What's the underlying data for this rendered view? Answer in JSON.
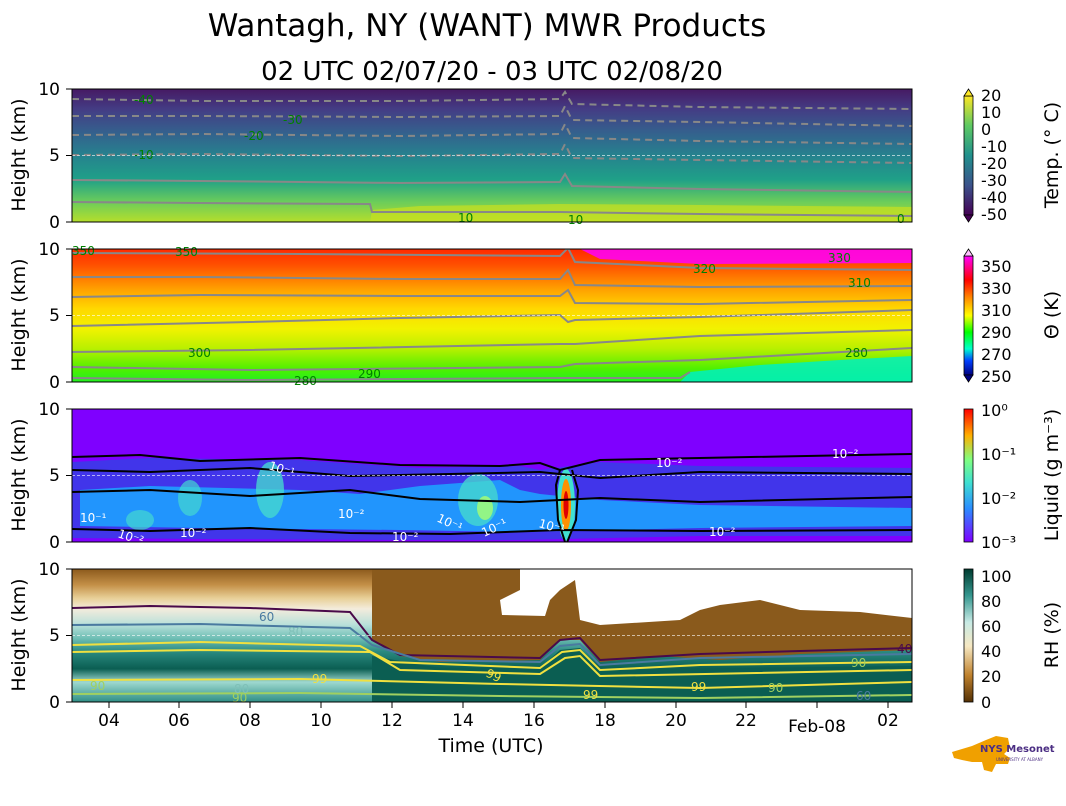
{
  "figure": {
    "title": "Wantagh, NY (WANT) MWR Products",
    "subtitle": "02 UTC 02/07/20 - 03 UTC 02/08/20",
    "xlabel": "Time (UTC)",
    "x_ticks": [
      "04",
      "06",
      "08",
      "10",
      "12",
      "14",
      "16",
      "18",
      "20",
      "22",
      "02"
    ],
    "date_tick": "Feb-08",
    "logo_text": "NYS Mesonet",
    "logo_subtext": "UNIVERSITY AT ALBANY"
  },
  "chart_data": [
    {
      "type": "heatmap",
      "ylabel": "Height (km)",
      "ylim": [
        0,
        10
      ],
      "y_ticks": [
        "0",
        "5",
        "10"
      ],
      "colorbar_label": "Temp. (° C)",
      "colorbar_ticks": [
        "20",
        "10",
        "0",
        "-10",
        "-20",
        "-30",
        "-40",
        "-50"
      ],
      "colorbar_range": [
        -50,
        20
      ],
      "colormap": [
        "#440154",
        "#3b528b",
        "#21908d",
        "#5dc963",
        "#fde725"
      ],
      "contour_labels": [
        "-40",
        "-30",
        "-20",
        "-10",
        "10",
        "10",
        "0"
      ],
      "contours_dashed_below_zero": true
    },
    {
      "type": "heatmap",
      "ylabel": "Height (km)",
      "ylim": [
        0,
        10
      ],
      "y_ticks": [
        "0",
        "5",
        "10"
      ],
      "colorbar_label": "Θ (K)",
      "colorbar_ticks": [
        "350",
        "330",
        "310",
        "290",
        "270",
        "250"
      ],
      "colorbar_range": [
        250,
        360
      ],
      "colormap": [
        "#000080",
        "#00ffcc",
        "#00ff00",
        "#ffff00",
        "#ff8000",
        "#ff0000",
        "#ff00ff"
      ],
      "contour_labels": [
        "350",
        "350",
        "330",
        "320",
        "310",
        "300",
        "290",
        "280",
        "280"
      ]
    },
    {
      "type": "heatmap",
      "ylabel": "Height (km)",
      "ylim": [
        0,
        10
      ],
      "y_ticks": [
        "0",
        "5",
        "10"
      ],
      "colorbar_label": "Liquid (g m⁻³)",
      "colorbar_ticks": [
        "10⁰",
        "10⁻¹",
        "10⁻²",
        "10⁻³"
      ],
      "colorbar_scale": "log",
      "colorbar_range": [
        0.001,
        1
      ],
      "colormap": [
        "#7f00ff",
        "#2b8cff",
        "#3fe0d0",
        "#80ff80",
        "#ffb000",
        "#ff0000"
      ],
      "contour_labels": [
        "10⁻¹",
        "10⁻²",
        "10⁻²",
        "10⁻²",
        "10⁻¹",
        "10⁻²",
        "10⁻²",
        "10⁻¹",
        "10⁻¹",
        "10⁻¹",
        "10⁻²",
        "10⁻²"
      ]
    },
    {
      "type": "heatmap",
      "ylabel": "Height (km)",
      "ylim": [
        0,
        10
      ],
      "y_ticks": [
        "0",
        "5",
        "10"
      ],
      "colorbar_label": "RH (%)",
      "colorbar_ticks": [
        "100",
        "80",
        "60",
        "40",
        "20",
        "0"
      ],
      "colorbar_range": [
        0,
        100
      ],
      "colormap": [
        "#543005",
        "#bf812d",
        "#f6e8c3",
        "#c7eae5",
        "#35978f",
        "#003c30"
      ],
      "contour_labels": [
        "60",
        "80",
        "99",
        "99",
        "90",
        "99",
        "99",
        "40",
        "90",
        "60",
        "90",
        "80",
        "90"
      ]
    }
  ]
}
